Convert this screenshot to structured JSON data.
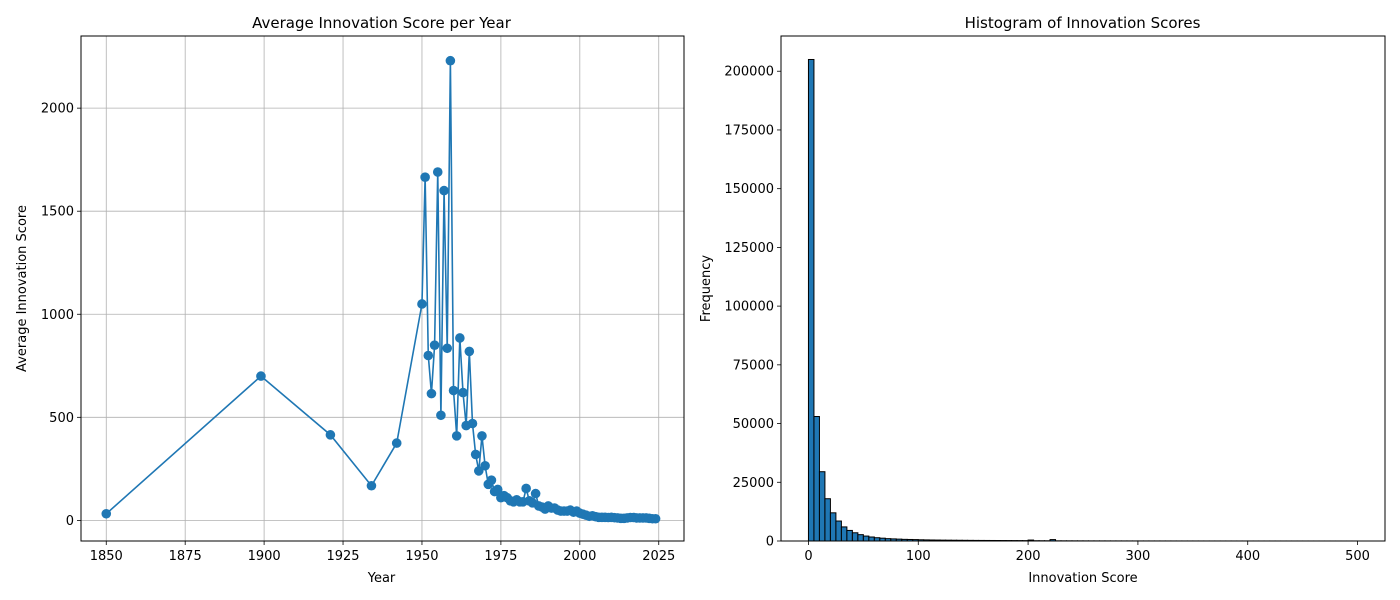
{
  "chart_data": [
    {
      "type": "line",
      "title": "Average Innovation Score per Year",
      "xlabel": "Year",
      "ylabel": "Average Innovation Score",
      "xlim": [
        1842,
        2033
      ],
      "ylim": [
        -100,
        2350
      ],
      "grid": true,
      "marker": "circle",
      "color": "#1f77b4",
      "x_ticks": [
        1850,
        1875,
        1900,
        1925,
        1950,
        1975,
        2000,
        2025
      ],
      "y_ticks": [
        0,
        500,
        1000,
        1500,
        2000
      ],
      "x": [
        1850,
        1899,
        1921,
        1934,
        1942,
        1950,
        1951,
        1952,
        1953,
        1954,
        1955,
        1956,
        1957,
        1958,
        1959,
        1960,
        1961,
        1962,
        1963,
        1964,
        1965,
        1966,
        1967,
        1968,
        1969,
        1970,
        1971,
        1972,
        1973,
        1974,
        1975,
        1976,
        1977,
        1978,
        1979,
        1980,
        1981,
        1982,
        1983,
        1984,
        1985,
        1986,
        1987,
        1988,
        1989,
        1990,
        1991,
        1992,
        1993,
        1994,
        1995,
        1996,
        1997,
        1998,
        1999,
        2000,
        2001,
        2002,
        2003,
        2004,
        2005,
        2006,
        2007,
        2008,
        2009,
        2010,
        2011,
        2012,
        2013,
        2014,
        2015,
        2016,
        2017,
        2018,
        2019,
        2020,
        2021,
        2022,
        2023,
        2024
      ],
      "y": [
        32,
        700,
        415,
        168,
        375,
        1050,
        1665,
        800,
        615,
        850,
        1690,
        510,
        1600,
        835,
        2230,
        630,
        410,
        885,
        620,
        460,
        820,
        470,
        320,
        240,
        410,
        265,
        175,
        195,
        140,
        150,
        110,
        120,
        110,
        95,
        90,
        100,
        90,
        90,
        155,
        95,
        85,
        130,
        70,
        65,
        55,
        70,
        60,
        60,
        50,
        45,
        45,
        45,
        50,
        40,
        45,
        35,
        30,
        25,
        20,
        22,
        18,
        15,
        15,
        15,
        14,
        15,
        13,
        12,
        10,
        10,
        12,
        14,
        14,
        12,
        12,
        12,
        12,
        10,
        8,
        8
      ]
    },
    {
      "type": "bar",
      "title": "Histogram of Innovation Scores",
      "xlabel": "Innovation Score",
      "ylabel": "Frequency",
      "xlim": [
        -25,
        525
      ],
      "ylim": [
        0,
        215000
      ],
      "grid": false,
      "color": "#1f77b4",
      "edgecolor": "#000000",
      "bin_width": 5,
      "x_ticks": [
        0,
        100,
        200,
        300,
        400,
        500
      ],
      "y_ticks": [
        0,
        25000,
        50000,
        75000,
        100000,
        125000,
        150000,
        175000,
        200000
      ],
      "bin_starts": [
        0,
        5,
        10,
        15,
        20,
        25,
        30,
        35,
        40,
        45,
        50,
        55,
        60,
        65,
        70,
        75,
        80,
        85,
        90,
        95,
        100,
        105,
        110,
        115,
        120,
        125,
        130,
        135,
        140,
        145,
        150,
        155,
        160,
        165,
        170,
        175,
        180,
        185,
        190,
        195,
        200,
        205,
        210,
        215,
        220,
        225,
        230,
        235,
        240,
        245,
        250,
        255,
        260,
        265,
        270,
        275,
        280,
        285,
        290,
        295,
        300,
        305,
        310,
        315,
        320,
        325,
        330,
        335,
        340,
        345,
        350,
        355,
        360,
        365,
        370,
        375,
        380,
        385,
        390,
        395,
        400,
        405,
        410,
        415,
        420,
        425,
        430,
        435,
        440,
        445,
        450,
        455,
        460,
        465,
        470,
        475,
        480,
        485,
        490,
        495
      ],
      "values": [
        205000,
        53000,
        29500,
        18000,
        12000,
        8500,
        6000,
        4500,
        3500,
        2700,
        2100,
        1700,
        1400,
        1200,
        1000,
        900,
        800,
        700,
        650,
        600,
        520,
        470,
        430,
        400,
        370,
        350,
        330,
        310,
        290,
        270,
        250,
        240,
        230,
        220,
        210,
        200,
        190,
        180,
        170,
        160,
        400,
        120,
        110,
        100,
        600,
        80,
        75,
        70,
        65,
        60,
        55,
        50,
        48,
        45,
        42,
        40,
        38,
        36,
        34,
        32,
        30,
        29,
        28,
        27,
        26,
        25,
        24,
        23,
        22,
        21,
        20,
        20,
        19,
        19,
        18,
        18,
        17,
        17,
        16,
        16,
        15,
        15,
        14,
        14,
        13,
        13,
        12,
        12,
        11,
        11,
        10,
        10,
        10,
        9,
        9,
        9,
        8,
        8,
        8,
        8
      ]
    }
  ]
}
